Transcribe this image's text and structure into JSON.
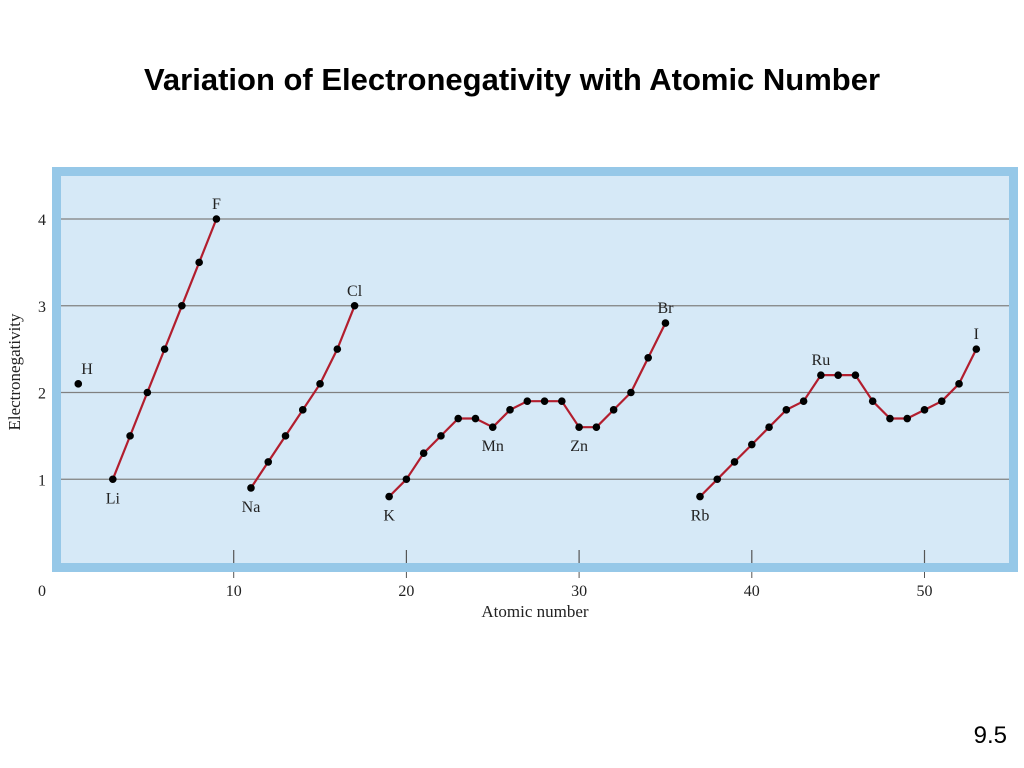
{
  "slide": {
    "title": "Variation of Electronegativity with Atomic Number",
    "page_number": "9.5"
  },
  "chart_data": {
    "type": "line",
    "title": "",
    "xlabel": "Atomic number",
    "ylabel": "Electronegativity",
    "xlim": [
      0,
      55
    ],
    "ylim": [
      0,
      4.5
    ],
    "x_ticks": [
      "0",
      "10",
      "20",
      "30",
      "40",
      "50"
    ],
    "y_ticks": [
      "1",
      "2",
      "3",
      "4"
    ],
    "grid": true,
    "colors": {
      "plot_bg": "#d6e9f7",
      "frame": "#96c8e8",
      "line": "#b21e2e",
      "marker": "#000000",
      "grid": "#808080"
    },
    "points": [
      {
        "x": 1,
        "y": 2.1,
        "label": "H"
      }
    ],
    "series": [
      {
        "x": [
          3,
          4,
          5,
          6,
          7,
          8,
          9
        ],
        "y": [
          1.0,
          1.5,
          2.0,
          2.5,
          3.0,
          3.5,
          4.0
        ]
      },
      {
        "x": [
          11,
          12,
          13,
          14,
          15,
          16,
          17
        ],
        "y": [
          0.9,
          1.2,
          1.5,
          1.8,
          2.1,
          2.5,
          3.0
        ]
      },
      {
        "x": [
          19,
          20,
          21,
          22,
          23,
          24,
          25,
          26,
          27,
          28,
          29,
          30,
          31,
          32,
          33,
          34,
          35
        ],
        "y": [
          0.8,
          1.0,
          1.3,
          1.5,
          1.7,
          1.7,
          1.6,
          1.8,
          1.9,
          1.9,
          1.9,
          1.6,
          1.6,
          1.8,
          2.0,
          2.4,
          2.8
        ]
      },
      {
        "x": [
          37,
          38,
          39,
          40,
          41,
          42,
          43,
          44,
          45,
          46,
          47,
          48,
          49,
          50,
          51,
          52,
          53
        ],
        "y": [
          0.8,
          1.0,
          1.2,
          1.4,
          1.6,
          1.8,
          1.9,
          2.2,
          2.2,
          2.2,
          1.9,
          1.7,
          1.7,
          1.8,
          1.9,
          2.1,
          2.5
        ]
      }
    ],
    "annotations": [
      {
        "text": "F",
        "x": 9,
        "y": 4.0,
        "pos": "above"
      },
      {
        "text": "Li",
        "x": 3,
        "y": 1.0,
        "pos": "below"
      },
      {
        "text": "Cl",
        "x": 17,
        "y": 3.0,
        "pos": "above"
      },
      {
        "text": "Na",
        "x": 11,
        "y": 0.9,
        "pos": "below"
      },
      {
        "text": "Br",
        "x": 35,
        "y": 2.8,
        "pos": "above"
      },
      {
        "text": "K",
        "x": 19,
        "y": 0.8,
        "pos": "below"
      },
      {
        "text": "Mn",
        "x": 25,
        "y": 1.6,
        "pos": "below"
      },
      {
        "text": "Zn",
        "x": 30,
        "y": 1.6,
        "pos": "below"
      },
      {
        "text": "I",
        "x": 53,
        "y": 2.5,
        "pos": "above"
      },
      {
        "text": "Ru",
        "x": 44,
        "y": 2.2,
        "pos": "above"
      },
      {
        "text": "Rb",
        "x": 37,
        "y": 0.8,
        "pos": "below"
      },
      {
        "text": "H",
        "x": 1,
        "y": 2.1,
        "pos": "above-right"
      }
    ]
  }
}
